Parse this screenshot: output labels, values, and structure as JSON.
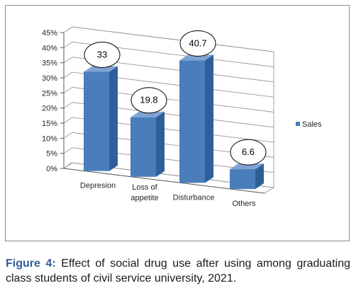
{
  "chart_data": {
    "type": "bar",
    "style": "3d-column",
    "categories": [
      [
        "Depresion"
      ],
      [
        "Loss of",
        "appetite"
      ],
      [
        "Disturbance"
      ],
      [
        "Others"
      ]
    ],
    "series": [
      {
        "name": "Sales",
        "values": [
          33,
          19.8,
          40.7,
          6.6
        ],
        "color": "#4a7ebb"
      }
    ],
    "data_labels": [
      "33",
      "19.8",
      "40.7",
      "6.6"
    ],
    "y_ticks": [
      "0%",
      "5%",
      "10%",
      "15%",
      "20%",
      "25%",
      "30%",
      "35%",
      "40%",
      "45%"
    ],
    "ylim": [
      0,
      45
    ],
    "grid": true,
    "legend": "right"
  },
  "caption": {
    "label": "Figure 4:",
    "text": "Effect of social drug use after using among graduating class students of civil service university, 2021."
  }
}
